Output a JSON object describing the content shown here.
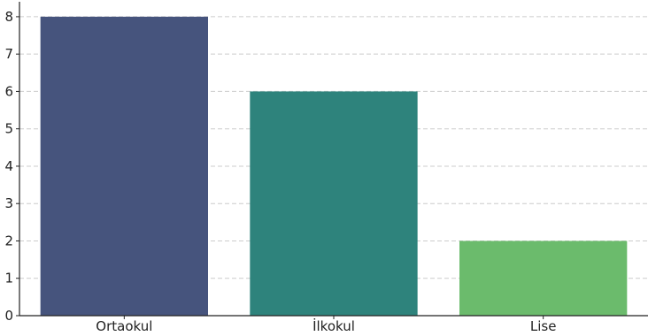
{
  "chart_data": {
    "type": "bar",
    "title": "",
    "xlabel": "",
    "ylabel": "",
    "categories": [
      "Ortaokul",
      "İlkokul",
      "Lise"
    ],
    "values": [
      8,
      6,
      2
    ],
    "colors": [
      "#46547d",
      "#2e837c",
      "#6bbb6c"
    ],
    "ylim": [
      0,
      8.4
    ],
    "yticks": [
      0,
      1,
      2,
      3,
      4,
      5,
      6,
      7,
      8
    ],
    "grid": "horizontal-dashed",
    "grid_color": "#cccccc",
    "axis_color": "#222222"
  }
}
